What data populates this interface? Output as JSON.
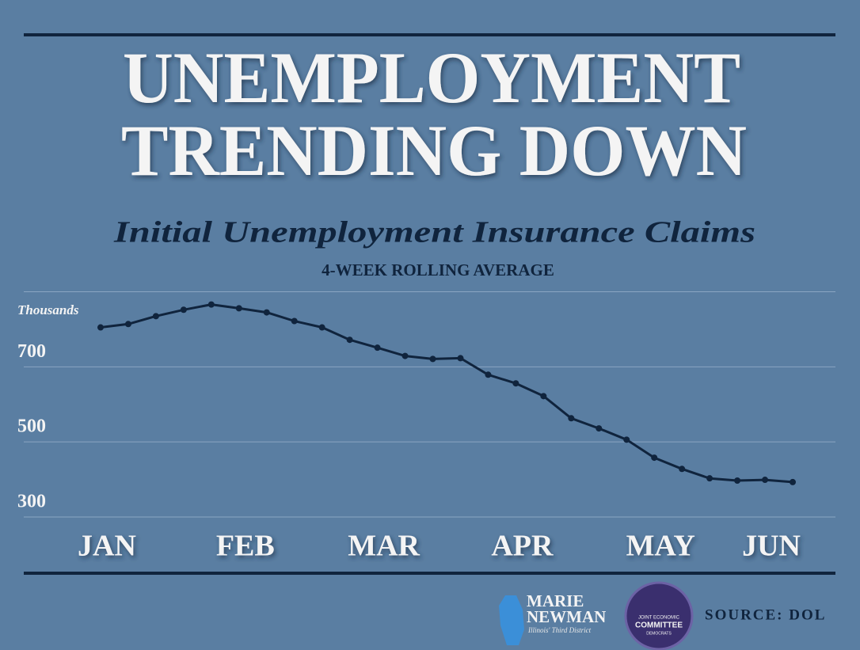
{
  "chart_data": {
    "type": "line",
    "title": [
      "UNEMPLOYMENT",
      "TRENDING DOWN"
    ],
    "subtitle": "Initial Unemployment Insurance Claims",
    "subtitle2": "4-WEEK ROLLING AVERAGE",
    "y_label": "Thousands",
    "categories": [
      "JAN",
      null,
      null,
      null,
      null,
      "FEB",
      null,
      null,
      null,
      null,
      "MAR",
      null,
      null,
      null,
      null,
      "APR",
      null,
      null,
      null,
      null,
      "MAY",
      null,
      null,
      null,
      "JUN",
      null
    ],
    "series": [
      {
        "name": "Initial claims",
        "color": "#10243d",
        "values": [
          805,
          814,
          835,
          852,
          866,
          856,
          845,
          822,
          805,
          772,
          751,
          729,
          721,
          723,
          679,
          656,
          622,
          563,
          536,
          506,
          458,
          428,
          403,
          397,
          399,
          393
        ]
      }
    ],
    "ylim": [
      300,
      900
    ],
    "yticks": [
      300,
      500,
      700
    ],
    "grid": true
  },
  "footer": {
    "org1": [
      "MARIE",
      "NEWMAN"
    ],
    "org1_sub": "Illinois' Third District",
    "org2": [
      "JOINT ECONOMIC",
      "COMMITTEE",
      "DEMOCRATS"
    ],
    "source": "SOURCE: DOL"
  }
}
